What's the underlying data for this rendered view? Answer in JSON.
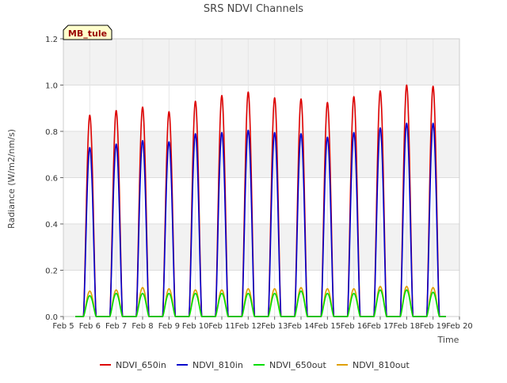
{
  "chart_data": {
    "type": "line",
    "title": "SRS NDVI Channels",
    "xlabel": "Time",
    "ylabel": "Radiance (W/m2/nm/s)",
    "annotation": "MB_tule",
    "xlim": [
      5,
      20
    ],
    "ylim": [
      0,
      1.2
    ],
    "x_ticks": [
      5,
      6,
      7,
      8,
      9,
      10,
      11,
      12,
      13,
      14,
      15,
      16,
      17,
      18,
      19,
      20
    ],
    "x_tick_labels": [
      "Feb 5",
      "Feb 6",
      "Feb 7",
      "Feb 8",
      "Feb 9",
      "Feb 10",
      "Feb 11",
      "Feb 12",
      "Feb 13",
      "Feb 14",
      "Feb 15",
      "Feb 16",
      "Feb 17",
      "Feb 18",
      "Feb 19",
      "Feb 20"
    ],
    "y_ticks": [
      0.0,
      0.2,
      0.4,
      0.6,
      0.8,
      1.0,
      1.2
    ],
    "y_tick_labels": [
      "0.0",
      "0.2",
      "0.4",
      "0.6",
      "0.8",
      "1.0",
      "1.2"
    ],
    "legend_position": "bottom-center",
    "grid": true,
    "day_centers": [
      6.0,
      7.0,
      8.0,
      9.0,
      10.0,
      11.0,
      12.0,
      13.0,
      14.0,
      15.0,
      16.0,
      17.0,
      18.0,
      19.0
    ],
    "series": [
      {
        "name": "NDVI_650in",
        "color": "#dd0000",
        "daily_peaks": [
          0.87,
          0.89,
          0.905,
          0.885,
          0.93,
          0.955,
          0.97,
          0.945,
          0.94,
          0.925,
          0.95,
          0.975,
          1.0,
          0.995
        ]
      },
      {
        "name": "NDVI_810in",
        "color": "#0000cc",
        "daily_peaks": [
          0.73,
          0.745,
          0.76,
          0.755,
          0.79,
          0.795,
          0.805,
          0.795,
          0.79,
          0.775,
          0.795,
          0.815,
          0.835,
          0.835
        ]
      },
      {
        "name": "NDVI_650out",
        "color": "#00dd00",
        "daily_peaks": [
          0.09,
          0.1,
          0.1,
          0.1,
          0.1,
          0.1,
          0.1,
          0.1,
          0.11,
          0.1,
          0.1,
          0.115,
          0.115,
          0.105
        ]
      },
      {
        "name": "NDVI_810out",
        "color": "#e0a000",
        "daily_peaks": [
          0.11,
          0.115,
          0.125,
          0.12,
          0.115,
          0.115,
          0.12,
          0.12,
          0.125,
          0.12,
          0.12,
          0.13,
          0.13,
          0.125
        ]
      }
    ]
  }
}
